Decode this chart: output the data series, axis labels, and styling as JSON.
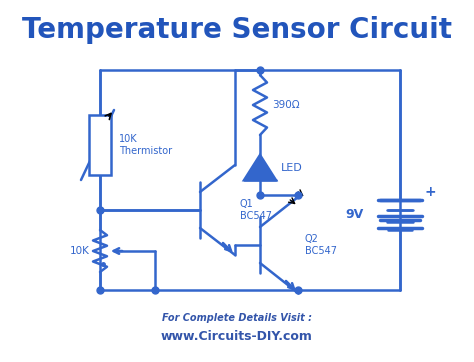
{
  "title": "Temperature Sensor Circuit",
  "title_color": "#2255bb",
  "title_fontsize": 20,
  "circuit_color": "#3366cc",
  "bg_color": "#ffffff",
  "footer_text1": "For Complete Details Visit :",
  "footer_text2": "www.Circuits-DIY.com",
  "footer_color1": "#3355aa",
  "footer_color2": "#3355aa",
  "circuit_lw": 1.8,
  "dot_size": 5,
  "labels": {
    "thermistor": "10K\nThermistor",
    "resistor390": "390Ω",
    "led": "LED",
    "q1": "Q1\nBC547",
    "q2": "Q2\nBC547",
    "pot": "10K",
    "battery": "9V"
  }
}
